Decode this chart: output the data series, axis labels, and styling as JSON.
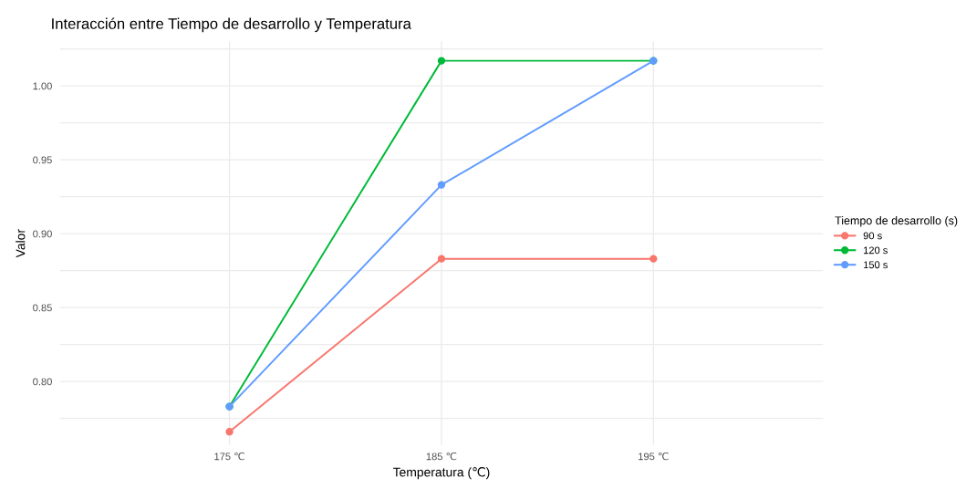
{
  "chart_data": {
    "type": "line",
    "title": "Interacción entre Tiempo de desarrollo y Temperatura",
    "xlabel": "Temperatura (℃)",
    "ylabel": "Valor",
    "legend_title": "Tiempo de desarrollo (s)",
    "categories": [
      "175 ℃",
      "185 ℃",
      "195 ℃"
    ],
    "series": [
      {
        "name": "90 s",
        "color": "#f8766d",
        "values": [
          0.766,
          0.883,
          0.883
        ]
      },
      {
        "name": "120 s",
        "color": "#00ba38",
        "values": [
          0.783,
          1.017,
          1.017
        ]
      },
      {
        "name": "150 s",
        "color": "#619cff",
        "values": [
          0.783,
          0.933,
          1.017
        ]
      }
    ],
    "ylim": [
      0.757,
      1.03
    ],
    "yticks": [
      {
        "value": 0.775,
        "label": null
      },
      {
        "value": 0.8,
        "label": "0.80"
      },
      {
        "value": 0.825,
        "label": null
      },
      0.85,
      {
        "value": 0.875,
        "label": null
      },
      {
        "value": 0.9,
        "label": "0.90"
      },
      {
        "value": 0.925,
        "label": null
      },
      0.95,
      {
        "value": 0.975,
        "label": null
      },
      {
        "value": 1.0,
        "label": "1.00"
      },
      {
        "value": 1.025,
        "label": null
      }
    ],
    "grid": true,
    "legend": "right",
    "marker": "circle",
    "line_style": "solid"
  }
}
